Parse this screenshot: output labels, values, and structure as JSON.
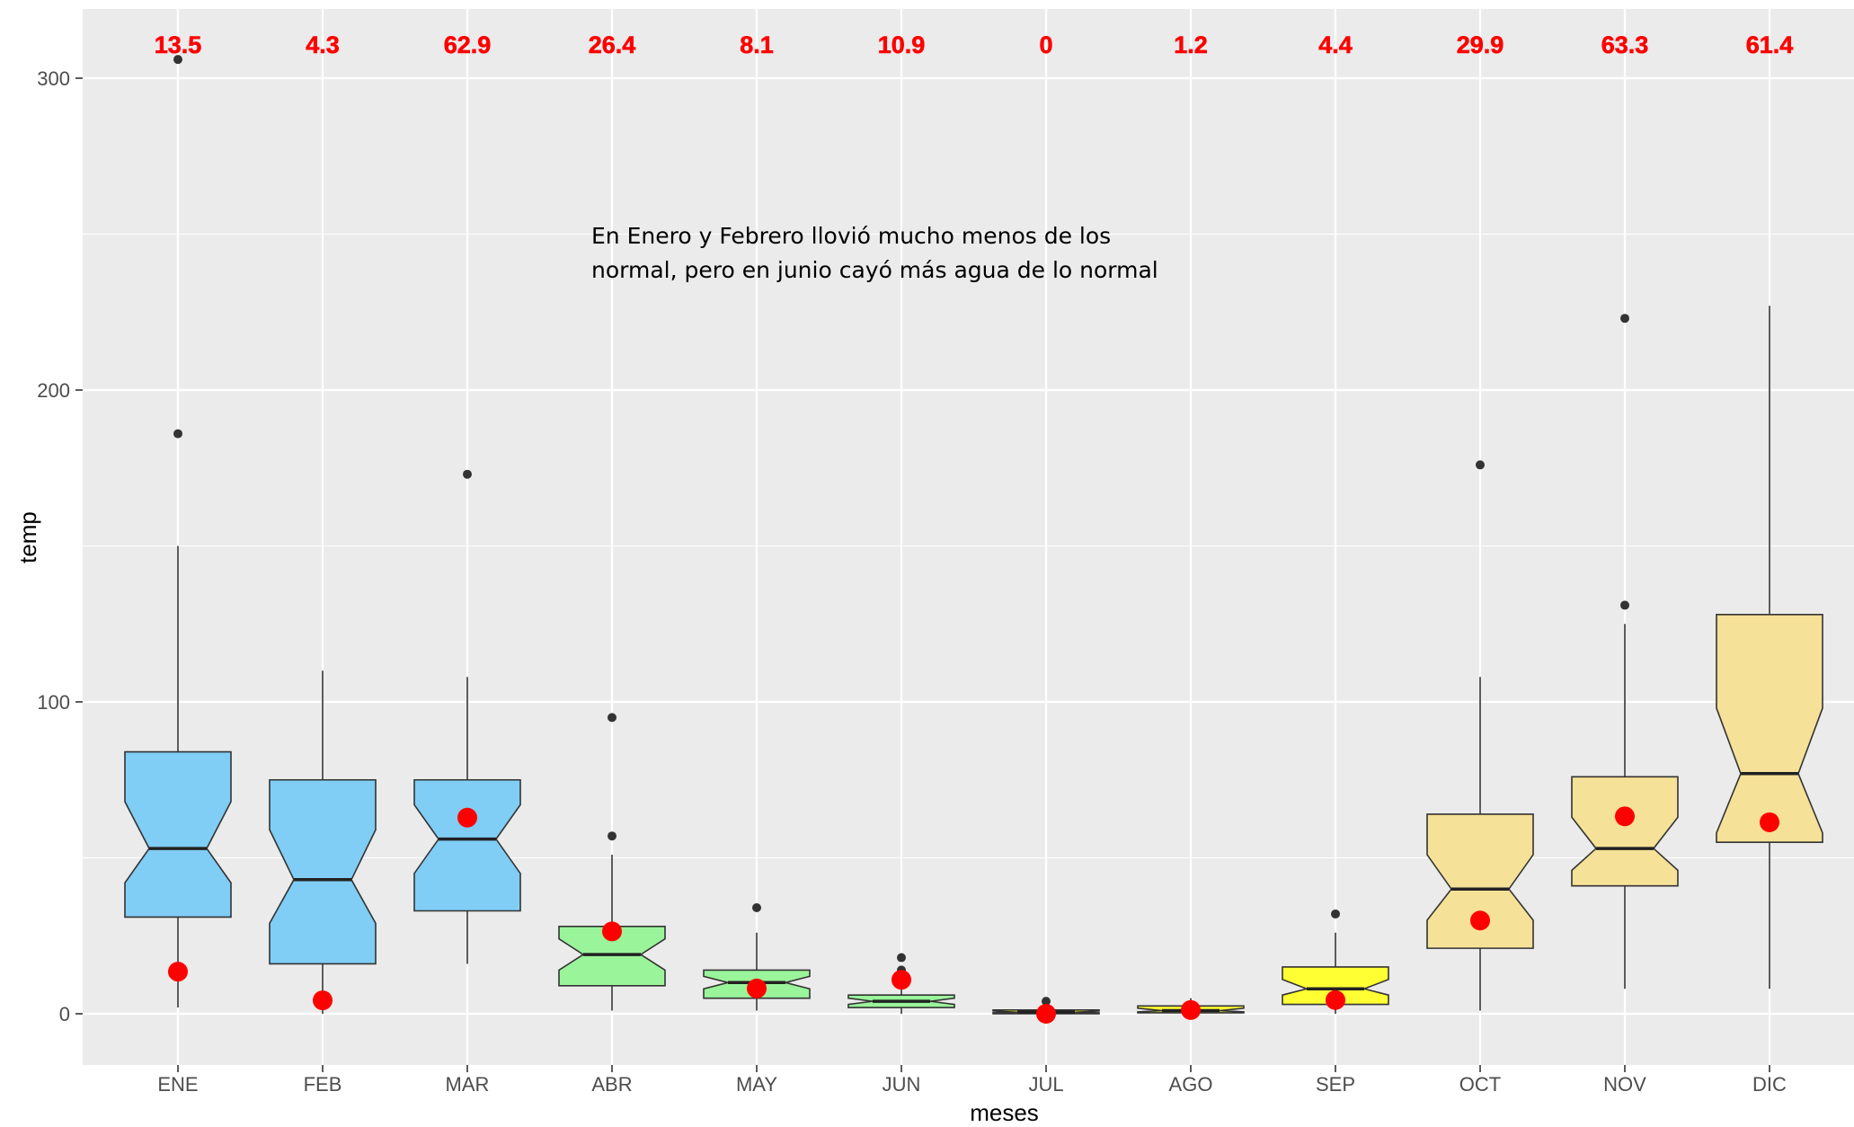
{
  "chart_data": {
    "type": "boxplot",
    "xlabel": "meses",
    "ylabel": "temp",
    "ylim": [
      -15,
      320
    ],
    "yticks": [
      0,
      100,
      200,
      300
    ],
    "grid": true,
    "annotation": {
      "line1": "En Enero y Febrero llovió mucho menos de los",
      "line2": "normal, pero en junio cayó más agua de lo normal"
    },
    "categories": [
      "ENE",
      "FEB",
      "MAR",
      "ABR",
      "MAY",
      "JUN",
      "JUL",
      "AGO",
      "SEP",
      "OCT",
      "NOV",
      "DIC"
    ],
    "top_labels": [
      "13.5",
      "4.3",
      "62.9",
      "26.4",
      "8.1",
      "10.9",
      "0",
      "1.2",
      "4.4",
      "29.9",
      "63.3",
      "61.4"
    ],
    "highlight_values": [
      13.5,
      4.3,
      62.9,
      26.4,
      8.1,
      10.9,
      0,
      1.2,
      4.4,
      29.9,
      63.3,
      61.4
    ],
    "boxes": [
      {
        "month": "ENE",
        "min": 2,
        "q1": 31,
        "median": 53,
        "q3": 84,
        "max": 150,
        "notch_low": 42,
        "notch_high": 68,
        "outliers": [
          186,
          306
        ],
        "color": "#80cdf5"
      },
      {
        "month": "FEB",
        "min": 0,
        "q1": 16,
        "median": 43,
        "q3": 75,
        "max": 110,
        "notch_low": 29,
        "notch_high": 59,
        "outliers": [],
        "color": "#80cdf5"
      },
      {
        "month": "MAR",
        "min": 16,
        "q1": 33,
        "median": 56,
        "q3": 75,
        "max": 108,
        "notch_low": 45,
        "notch_high": 67,
        "outliers": [
          173
        ],
        "color": "#80cdf5"
      },
      {
        "month": "ABR",
        "min": 1,
        "q1": 9,
        "median": 19,
        "q3": 28,
        "max": 51,
        "notch_low": 14,
        "notch_high": 24,
        "outliers": [
          57,
          95
        ],
        "color": "#9af59a"
      },
      {
        "month": "MAY",
        "min": 1,
        "q1": 5,
        "median": 10,
        "q3": 14,
        "max": 26,
        "notch_low": 8,
        "notch_high": 12,
        "outliers": [
          34
        ],
        "color": "#9af59a"
      },
      {
        "month": "JUN",
        "min": 0,
        "q1": 2,
        "median": 4,
        "q3": 6,
        "max": 13,
        "notch_low": 3,
        "notch_high": 5,
        "outliers": [
          14,
          18
        ],
        "color": "#9af59a"
      },
      {
        "month": "JUL",
        "min": 0,
        "q1": 0,
        "median": 0.5,
        "q3": 1.2,
        "max": 3,
        "notch_low": 0.3,
        "notch_high": 0.9,
        "outliers": [
          4
        ],
        "color": "#ffff33"
      },
      {
        "month": "AGO",
        "min": 0,
        "q1": 0.3,
        "median": 1,
        "q3": 2.5,
        "max": 5,
        "notch_low": 0.6,
        "notch_high": 1.8,
        "outliers": [],
        "color": "#ffff33"
      },
      {
        "month": "SEP",
        "min": 0,
        "q1": 3,
        "median": 8,
        "q3": 15,
        "max": 26,
        "notch_low": 6,
        "notch_high": 11,
        "outliers": [
          32
        ],
        "color": "#ffff33"
      },
      {
        "month": "OCT",
        "min": 1,
        "q1": 21,
        "median": 40,
        "q3": 64,
        "max": 108,
        "notch_low": 30,
        "notch_high": 51,
        "outliers": [
          176
        ],
        "color": "#f5e197"
      },
      {
        "month": "NOV",
        "min": 8,
        "q1": 41,
        "median": 53,
        "q3": 76,
        "max": 125,
        "notch_low": 46,
        "notch_high": 63,
        "outliers": [
          131,
          223
        ],
        "color": "#f5e197"
      },
      {
        "month": "DIC",
        "min": 8,
        "q1": 55,
        "median": 77,
        "q3": 128,
        "max": 227,
        "notch_low": 58,
        "notch_high": 98,
        "outliers": [],
        "color": "#f5e197"
      }
    ],
    "colors": {
      "panel": "#ebebeb",
      "grid": "#ffffff",
      "box_outline": "#333333",
      "highlight": "#ff0000",
      "label": "#ff0000"
    }
  }
}
